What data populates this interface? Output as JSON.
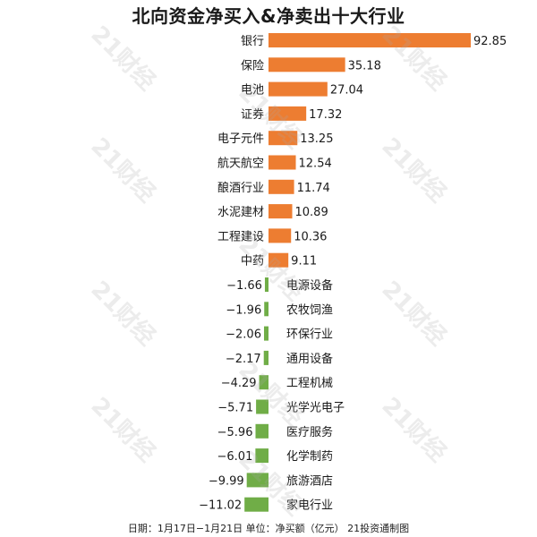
{
  "colors": {
    "positive": "#ED7D31",
    "negative": "#70AD47"
  },
  "watermark_text": "21财经",
  "chart_data": {
    "type": "bar",
    "orientation": "horizontal",
    "title": "北向资金净买入&净卖出十大行业",
    "footer": "日期：1月17日−1月21日 单位：净买额（亿元） 21投资通制图",
    "grid": false,
    "legend": "none",
    "categories": [
      "银行",
      "保险",
      "电池",
      "证券",
      "电子元件",
      "航天航空",
      "酿酒行业",
      "水泥建材",
      "工程建设",
      "中药",
      "电源设备",
      "农牧饲渔",
      "环保行业",
      "通用设备",
      "工程机械",
      "光学光电子",
      "医疗服务",
      "化学制药",
      "旅游酒店",
      "家电行业"
    ],
    "values": [
      92.85,
      35.18,
      27.04,
      17.32,
      13.25,
      12.54,
      11.74,
      10.89,
      10.36,
      9.11,
      -1.66,
      -1.96,
      -2.06,
      -2.17,
      -4.29,
      -5.71,
      -5.96,
      -6.01,
      -9.99,
      -11.02
    ],
    "value_labels": [
      "92.85",
      "35.18",
      "27.04",
      "17.32",
      "13.25",
      "12.54",
      "11.74",
      "10.89",
      "10.36",
      "9.11",
      "−1.66",
      "−1.96",
      "−2.06",
      "−2.17",
      "−4.29",
      "−5.71",
      "−5.96",
      "−6.01",
      "−9.99",
      "−11.02"
    ]
  }
}
